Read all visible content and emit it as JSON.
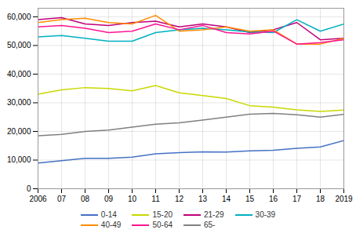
{
  "chart_data": {
    "type": "line",
    "x": [
      2006,
      2007,
      2008,
      2009,
      2010,
      2011,
      2012,
      2013,
      2014,
      2015,
      2016,
      2017,
      2018,
      2019
    ],
    "series": [
      {
        "name": "0-14",
        "color": "#4472C4",
        "values": [
          9000,
          9800,
          10600,
          10600,
          11000,
          12200,
          12600,
          12900,
          12800,
          13200,
          13400,
          14100,
          14600,
          16800
        ]
      },
      {
        "name": "15-20",
        "color": "#C8D800",
        "values": [
          33000,
          34500,
          35300,
          35000,
          34200,
          36000,
          33500,
          32500,
          31500,
          29000,
          28500,
          27500,
          27000,
          27500
        ]
      },
      {
        "name": "21-29",
        "color": "#C0007A",
        "values": [
          59000,
          59700,
          57500,
          57000,
          58000,
          58500,
          56500,
          57500,
          56500,
          54500,
          55500,
          58000,
          52000,
          52500
        ]
      },
      {
        "name": "30-39",
        "color": "#00B0C0",
        "values": [
          53000,
          53500,
          52500,
          51500,
          51500,
          54500,
          55500,
          56000,
          55500,
          54700,
          54500,
          59000,
          55000,
          57500
        ]
      },
      {
        "name": "40-49",
        "color": "#FF8C00",
        "values": [
          58000,
          59000,
          59500,
          58000,
          57500,
          60500,
          55000,
          55500,
          56500,
          55000,
          55500,
          50500,
          50500,
          52500
        ]
      },
      {
        "name": "50-64",
        "color": "#FF1493",
        "values": [
          56500,
          57000,
          56000,
          54500,
          55000,
          57500,
          55500,
          57000,
          54500,
          54000,
          55000,
          50500,
          51000,
          52000
        ]
      },
      {
        "name": "65-",
        "color": "#808080",
        "values": [
          18500,
          19000,
          20000,
          20500,
          21500,
          22500,
          23000,
          24000,
          25000,
          26000,
          26300,
          25800,
          25000,
          26000
        ]
      }
    ],
    "xlim": [
      2006,
      2019
    ],
    "xticks": [
      2006,
      {
        "value": 2007,
        "label": "07"
      },
      {
        "value": 2008,
        "label": "08"
      },
      {
        "value": 2009,
        "label": "09"
      },
      {
        "value": 2010,
        "label": "10"
      },
      {
        "value": 2011,
        "label": "11"
      },
      {
        "value": 2012,
        "label": "12"
      },
      {
        "value": 2013,
        "label": "13"
      },
      {
        "value": 2014,
        "label": "14"
      },
      {
        "value": 2015,
        "label": "15"
      },
      {
        "value": 2016,
        "label": "16"
      },
      {
        "value": 2017,
        "label": "17"
      },
      {
        "value": 2018,
        "label": "18"
      },
      2019
    ],
    "ylim": [
      0,
      63000
    ],
    "yticks": [
      0,
      {
        "value": 10000,
        "label": "10,000"
      },
      {
        "value": 20000,
        "label": "20,000"
      },
      {
        "value": 30000,
        "label": "30,000"
      },
      {
        "value": 40000,
        "label": "40,000"
      },
      {
        "value": 50000,
        "label": "50,000"
      },
      {
        "value": 60000,
        "label": "60,000"
      }
    ],
    "grid": true,
    "legend": "bottom"
  }
}
